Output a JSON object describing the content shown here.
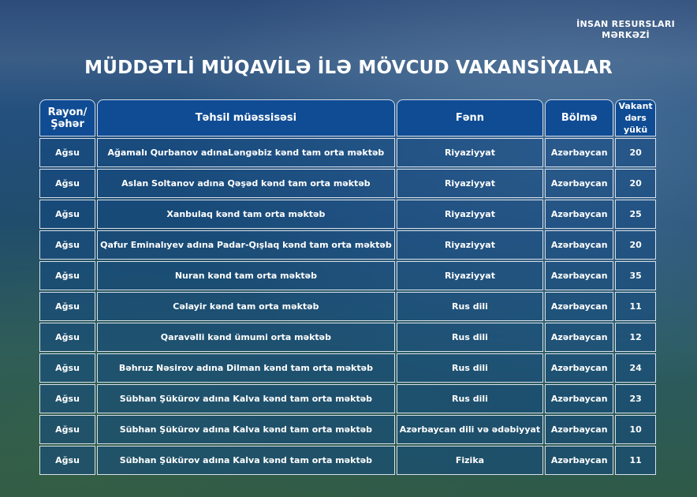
{
  "logo": {
    "line1": "İNSAN RESURSLARI",
    "line2": "MƏRKƏZİ"
  },
  "title": "MÜDDƏTLİ MÜQAVİLƏ İLƏ MÖVCUD VAKANSİYALAR",
  "headers": [
    "Rayon/Şəhər",
    "Təhsil müəssisəsi",
    "Fənn",
    "Bölmə",
    "Vakant dərs yükü"
  ],
  "rows": [
    [
      "Ağsu",
      "Ağamalı Qurbanov adınaLəngəbiz kənd tam orta məktəb",
      "Riyaziyyat",
      "Azərbaycan",
      "20"
    ],
    [
      "Ağsu",
      "Aslan Soltanov adına Qəşəd kənd tam orta məktəb",
      "Riyaziyyat",
      "Azərbaycan",
      "20"
    ],
    [
      "Ağsu",
      "Xanbulaq kənd tam orta məktəb",
      "Riyaziyyat",
      "Azərbaycan",
      "25"
    ],
    [
      "Ağsu",
      "Qafur Eminalıyev adına Padar-Qışlaq kənd tam orta məktəb",
      "Riyaziyyat",
      "Azərbaycan",
      "20"
    ],
    [
      "Ağsu",
      "Nuran kənd tam orta məktəb",
      "Riyaziyyat",
      "Azərbaycan",
      "35"
    ],
    [
      "Ağsu",
      "Cəlayir kənd tam orta məktəb",
      "Rus dili",
      "Azərbaycan",
      "11"
    ],
    [
      "Ağsu",
      "Qaravəlli kənd ümumi orta məktəb",
      "Rus dili",
      "Azərbaycan",
      "12"
    ],
    [
      "Ağsu",
      "Bəhruz Nəsirov adına Dilman kənd tam orta məktəb",
      "Rus dili",
      "Azərbaycan",
      "24"
    ],
    [
      "Ağsu",
      "Sübhan Şükürov adına Kalva kənd tam orta məktəb",
      "Rus dili",
      "Azərbaycan",
      "23"
    ],
    [
      "Ağsu",
      "Sübhan Şükürov adına Kalva kənd tam orta məktəb",
      "Azərbaycan dili və ədəbiyyat",
      "Azərbaycan",
      "10"
    ],
    [
      "Ağsu",
      "Sübhan Şükürov adına Kalva kənd tam orta məktəb",
      "Fizika",
      "Azərbaycan",
      "11"
    ]
  ]
}
